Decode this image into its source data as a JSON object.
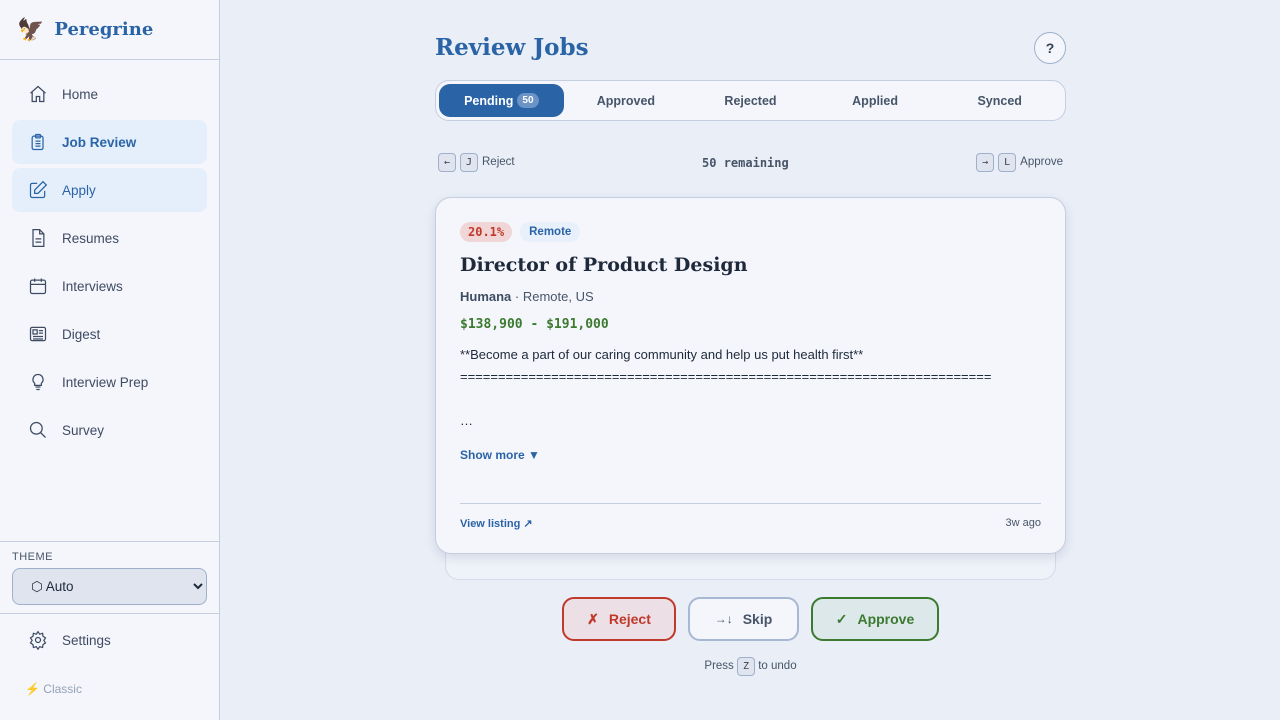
{
  "brand": {
    "name": "Peregrine",
    "logo": "🦅"
  },
  "nav": [
    {
      "label": "Home",
      "icon": "home-icon"
    },
    {
      "label": "Job Review",
      "icon": "clipboard-icon"
    },
    {
      "label": "Apply",
      "icon": "edit-icon"
    },
    {
      "label": "Resumes",
      "icon": "document-icon"
    },
    {
      "label": "Interviews",
      "icon": "calendar-icon"
    },
    {
      "label": "Digest",
      "icon": "newspaper-icon"
    },
    {
      "label": "Interview Prep",
      "icon": "lightbulb-icon"
    },
    {
      "label": "Survey",
      "icon": "search-icon"
    }
  ],
  "theme": {
    "label": "THEME",
    "value": "⬡ Auto"
  },
  "settings": "Settings",
  "classic": "⚡ Classic",
  "header": {
    "title": "Review Jobs",
    "help": "?"
  },
  "tabs": [
    {
      "label": "Pending",
      "count": "50"
    },
    {
      "label": "Approved"
    },
    {
      "label": "Rejected"
    },
    {
      "label": "Applied"
    },
    {
      "label": "Synced"
    }
  ],
  "shortcuts": {
    "left_arrow": "←",
    "left_key": "J",
    "left_label": "Reject",
    "remaining": "50 remaining",
    "right_arrow": "→",
    "right_key": "L",
    "right_label": "Approve"
  },
  "job": {
    "score": "20.1%",
    "tag": "Remote",
    "title": "Director of Product Design",
    "company": "Humana",
    "location": "Remote, US",
    "salary": "$138,900 - $191,000",
    "description_line1": "**Become a part of our caring community and help us put health first**",
    "description_line2": "======================================================================",
    "description_line3": "…",
    "show_more": "Show more ▼",
    "view_listing": "View listing ↗",
    "age": "3w ago"
  },
  "actions": {
    "reject_icon": "✗",
    "reject": "Reject",
    "skip_icon": "→↓",
    "skip": "Skip",
    "approve_icon": "✓",
    "approve": "Approve"
  },
  "undo": {
    "pre": "Press",
    "key": "Z",
    "post": "to undo"
  },
  "colors": {
    "accent": "#2b64a6",
    "reject": "#c0392b",
    "approve": "#3c7a30"
  }
}
